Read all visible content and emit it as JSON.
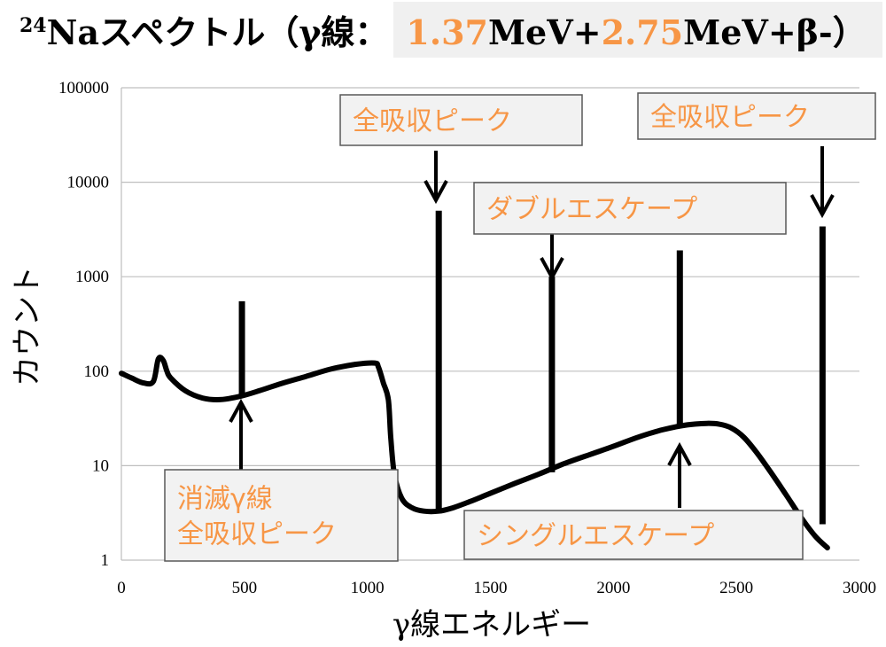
{
  "title": {
    "sup": "24",
    "main": "Naスペクトル（γ線：",
    "e1": "1.37",
    "mev1": "MeV+",
    "e2": "2.75",
    "rest": "MeV+β-）"
  },
  "accent_color": "#f79646",
  "chart_data": {
    "type": "line",
    "xlabel": "γ線エネルギー",
    "ylabel": "カウント",
    "xlim": [
      0,
      3000
    ],
    "ylim": [
      1,
      100000
    ],
    "yscale": "log",
    "x_ticks": [
      0,
      500,
      1000,
      1500,
      2000,
      2500,
      3000
    ],
    "x_tick_labels": [
      "0",
      "500",
      "1000",
      "1500",
      "2000",
      "2500",
      "3000"
    ],
    "y_ticks": [
      1,
      10,
      100,
      1000,
      10000,
      100000
    ],
    "y_tick_labels": [
      "1",
      "10",
      "100",
      "1000",
      "10000",
      "100000"
    ],
    "grid": "horizontal",
    "series": [
      {
        "x": [
          0,
          40,
          90,
          130,
          150,
          170,
          185,
          200,
          260,
          330,
          400,
          480,
          560,
          650,
          750,
          850,
          950,
          1030,
          1045,
          1065,
          1085,
          1095,
          1110,
          1140,
          1180,
          1230,
          1290,
          1350,
          1420,
          1500,
          1600,
          1700,
          1800,
          1900,
          2000,
          2100,
          2200,
          2300,
          2380,
          2430,
          2480,
          2530,
          2580,
          2640,
          2700,
          2760,
          2820,
          2870
        ],
        "y": [
          95,
          85,
          75,
          78,
          135,
          130,
          100,
          85,
          62,
          52,
          50,
          54,
          62,
          74,
          88,
          105,
          118,
          122,
          110,
          75,
          50,
          20,
          8,
          4.5,
          3.6,
          3.3,
          3.3,
          3.6,
          4.2,
          5.1,
          6.5,
          8.2,
          10.5,
          13,
          16,
          20,
          24,
          27,
          28,
          27.5,
          25,
          20,
          14,
          8.5,
          5,
          2.9,
          1.8,
          1.35
        ]
      }
    ],
    "lines": [
      {
        "x": 490,
        "y_top": 550
      },
      {
        "x": 1290,
        "y_top": 5000,
        "y_bottom": 3.3
      },
      {
        "x": 1750,
        "y_top": 1000,
        "y_bottom": 8.5
      },
      {
        "x": 2270,
        "y_top": 1900,
        "y_bottom": 25
      },
      {
        "x": 2850,
        "y_top": 3400,
        "y_bottom": 2.4
      }
    ],
    "annotations": [
      {
        "text": "全吸収ピーク"
      },
      {
        "text": "全吸収ピーク"
      },
      {
        "text": "ダブルエスケープ"
      },
      {
        "text": "シングルエスケープ"
      },
      {
        "text_lines": [
          "消滅γ線",
          "全吸収ピーク"
        ]
      }
    ]
  }
}
